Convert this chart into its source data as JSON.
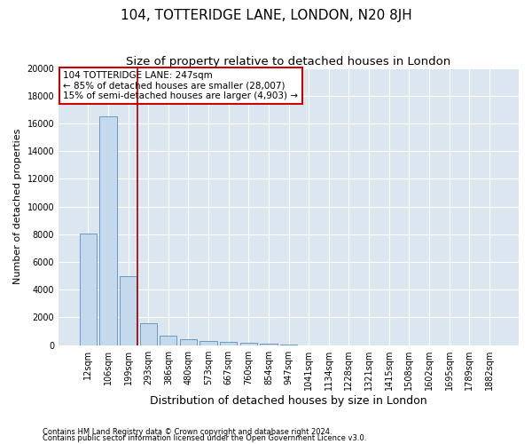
{
  "title": "104, TOTTERIDGE LANE, LONDON, N20 8JH",
  "subtitle": "Size of property relative to detached houses in London",
  "xlabel": "Distribution of detached houses by size in London",
  "ylabel": "Number of detached properties",
  "categories": [
    "12sqm",
    "106sqm",
    "199sqm",
    "293sqm",
    "386sqm",
    "480sqm",
    "573sqm",
    "667sqm",
    "760sqm",
    "854sqm",
    "947sqm",
    "1041sqm",
    "1134sqm",
    "1228sqm",
    "1321sqm",
    "1415sqm",
    "1508sqm",
    "1602sqm",
    "1695sqm",
    "1789sqm",
    "1882sqm"
  ],
  "values": [
    8050,
    16500,
    5000,
    1550,
    680,
    450,
    280,
    220,
    160,
    100,
    60,
    0,
    0,
    0,
    0,
    0,
    0,
    0,
    0,
    0,
    0
  ],
  "bar_color": "#c5d9ed",
  "bar_edge_color": "#5b8db8",
  "vline_x": 2.45,
  "vline_color": "#990000",
  "annotation_line1": "104 TOTTERIDGE LANE: 247sqm",
  "annotation_line2": "← 85% of detached houses are smaller (28,007)",
  "annotation_line3": "15% of semi-detached houses are larger (4,903) →",
  "annotation_box_color": "#ffffff",
  "annotation_border_color": "#cc0000",
  "ylim": [
    0,
    20000
  ],
  "yticks": [
    0,
    2000,
    4000,
    6000,
    8000,
    10000,
    12000,
    14000,
    16000,
    18000,
    20000
  ],
  "fig_bg_color": "#ffffff",
  "plot_bg_color": "#dce6f0",
  "grid_color": "#ffffff",
  "footer1": "Contains HM Land Registry data © Crown copyright and database right 2024.",
  "footer2": "Contains public sector information licensed under the Open Government Licence v3.0.",
  "title_fontsize": 11,
  "subtitle_fontsize": 9.5,
  "xlabel_fontsize": 9,
  "ylabel_fontsize": 8,
  "tick_fontsize": 7,
  "annotation_fontsize": 7.5,
  "footer_fontsize": 6
}
